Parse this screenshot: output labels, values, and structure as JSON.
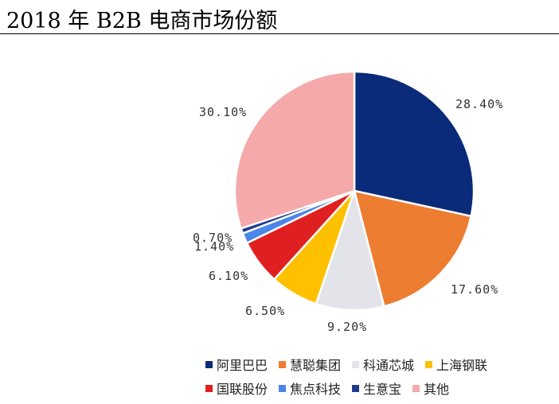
{
  "title": "2018 年 B2B 电商市场份额",
  "chart_data": {
    "type": "pie",
    "title": "2018 年 B2B 电商市场份额",
    "categories": [
      "阿里巴巴",
      "慧聪集团",
      "科通芯城",
      "上海钢联",
      "国联股份",
      "焦点科技",
      "生意宝",
      "其他"
    ],
    "values": [
      28.4,
      17.6,
      9.2,
      6.5,
      6.1,
      1.4,
      0.7,
      30.1
    ],
    "labels": [
      "28.40%",
      "17.60%",
      "9.20%",
      "6.50%",
      "6.10%",
      "1.40%",
      "0.70%",
      "30.10%"
    ],
    "colors": [
      "#0a2a7a",
      "#ed7d31",
      "#e3e4ea",
      "#ffc000",
      "#e02020",
      "#4a86e8",
      "#1f3a8a",
      "#f5a9aa"
    ],
    "legend_position": "bottom"
  }
}
